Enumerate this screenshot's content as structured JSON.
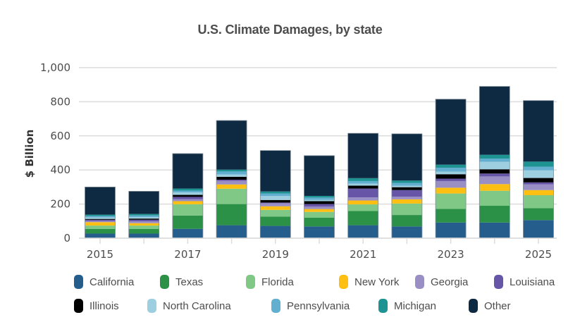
{
  "chart_data": {
    "type": "bar",
    "stacked": true,
    "title": "U.S. Climate Damages, by state",
    "xlabel": "",
    "ylabel": "$ Billion",
    "ylim": [
      0,
      1000
    ],
    "yticks": [
      0,
      200,
      400,
      600,
      800,
      1000
    ],
    "ytick_labels": [
      "0",
      "200",
      "400",
      "600",
      "800",
      "1,000"
    ],
    "categories": [
      "2015",
      "2016",
      "2017",
      "2018",
      "2019",
      "2020",
      "2021",
      "2022",
      "2023",
      "2024",
      "2025"
    ],
    "xtick_labels": [
      "2015",
      "2017",
      "2019",
      "2021",
      "2023",
      "2025"
    ],
    "grid": true,
    "legend_position": "bottom",
    "series": [
      {
        "name": "California",
        "color": "#255e8c",
        "values": [
          27,
          27,
          55,
          76,
          72,
          69,
          76,
          69,
          92,
          92,
          106
        ]
      },
      {
        "name": "Texas",
        "color": "#2a9146",
        "values": [
          27,
          27,
          78,
          124,
          55,
          51,
          83,
          67,
          80,
          98,
          70
        ]
      },
      {
        "name": "Florida",
        "color": "#80c886",
        "values": [
          20,
          20,
          66,
          90,
          39,
          34,
          39,
          67,
          90,
          88,
          76
        ]
      },
      {
        "name": "New York",
        "color": "#fdbf12",
        "values": [
          20,
          14,
          18,
          25,
          21,
          17,
          23,
          25,
          34,
          39,
          30
        ]
      },
      {
        "name": "Georgia",
        "color": "#9a8fc4",
        "values": [
          7,
          11,
          11,
          21,
          18,
          14,
          18,
          15,
          39,
          45,
          34
        ]
      },
      {
        "name": "Louisiana",
        "color": "#6756a8",
        "values": [
          7,
          9,
          14,
          7,
          4,
          15,
          52,
          39,
          14,
          17,
          11
        ]
      },
      {
        "name": "Illinois",
        "color": "#000000",
        "values": [
          5,
          7,
          12,
          17,
          15,
          17,
          17,
          17,
          26,
          25,
          26
        ]
      },
      {
        "name": "North Carolina",
        "color": "#9ecfe0",
        "values": [
          9,
          9,
          14,
          14,
          23,
          7,
          12,
          8,
          15,
          44,
          45
        ]
      },
      {
        "name": "Pennsylvania",
        "color": "#63afd0",
        "values": [
          8,
          9,
          11,
          17,
          15,
          14,
          15,
          17,
          23,
          19,
          21
        ]
      },
      {
        "name": "Michigan",
        "color": "#1d9392",
        "values": [
          8,
          9,
          12,
          11,
          12,
          10,
          17,
          14,
          18,
          22,
          30
        ]
      },
      {
        "name": "Other",
        "color": "#0e2a42",
        "values": [
          162,
          133,
          205,
          288,
          240,
          236,
          263,
          274,
          384,
          401,
          358
        ]
      }
    ]
  },
  "legend": {
    "rows": [
      [
        "California",
        "Texas",
        "Florida",
        "New York",
        "Georgia",
        "Louisiana"
      ],
      [
        "Illinois",
        "North Carolina",
        "Pennsylvania",
        "Michigan",
        "Other"
      ]
    ]
  }
}
